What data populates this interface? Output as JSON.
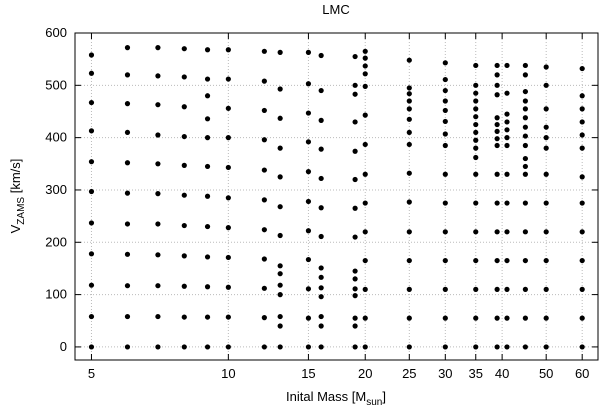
{
  "chart_data": {
    "type": "scatter",
    "title": "LMC",
    "xlabel": [
      "Inital Mass [M",
      "sun",
      "]"
    ],
    "ylabel": [
      "V",
      "ZAMS",
      " [km/s]"
    ],
    "log_x": true,
    "grid": true,
    "color": "#000000",
    "xlim": [
      4.6,
      65
    ],
    "ylim": [
      -25,
      600
    ],
    "xticks": [
      5,
      10,
      15,
      20,
      25,
      30,
      35,
      40,
      50,
      60
    ],
    "yticks": [
      0,
      100,
      200,
      300,
      400,
      500,
      600
    ],
    "groups": [
      {
        "x": 5,
        "y": [
          0,
          58,
          118,
          178,
          237,
          297,
          354,
          413,
          467,
          523,
          558
        ]
      },
      {
        "x": 6,
        "y": [
          0,
          58,
          117,
          177,
          235,
          294,
          352,
          410,
          465,
          520,
          572
        ]
      },
      {
        "x": 7,
        "y": [
          0,
          58,
          117,
          176,
          235,
          293,
          350,
          405,
          463,
          518,
          572
        ]
      },
      {
        "x": 8,
        "y": [
          0,
          57,
          116,
          174,
          232,
          290,
          347,
          402,
          459,
          516,
          570
        ]
      },
      {
        "x": 9,
        "y": [
          0,
          57,
          115,
          172,
          230,
          288,
          345,
          400,
          436,
          480,
          512,
          568
        ]
      },
      {
        "x": 10,
        "y": [
          0,
          57,
          114,
          171,
          228,
          285,
          343,
          400,
          456,
          512,
          568
        ]
      },
      {
        "x": 12,
        "y": [
          0,
          56,
          112,
          168,
          224,
          281,
          338,
          396,
          452,
          508,
          565
        ]
      },
      {
        "x": 13,
        "y": [
          0,
          40,
          58,
          100,
          118,
          140,
          155,
          213,
          268,
          325,
          380,
          437,
          493,
          563
        ]
      },
      {
        "x": 15,
        "y": [
          0,
          55,
          111,
          167,
          222,
          278,
          335,
          392,
          447,
          503,
          563
        ]
      },
      {
        "x": 16,
        "y": [
          0,
          40,
          58,
          96,
          113,
          133,
          151,
          211,
          266,
          322,
          378,
          433,
          490,
          557
        ]
      },
      {
        "x": 19,
        "y": [
          0,
          40,
          55,
          98,
          111,
          130,
          145,
          210,
          265,
          320,
          374,
          430,
          483,
          500,
          555
        ]
      },
      {
        "x": 20,
        "y": [
          0,
          55,
          110,
          165,
          220,
          275,
          330,
          387,
          443,
          498,
          522,
          537,
          552,
          565
        ]
      },
      {
        "x": 25,
        "y": [
          0,
          55,
          110,
          165,
          220,
          277,
          332,
          387,
          410,
          435,
          455,
          470,
          484,
          495,
          548
        ]
      },
      {
        "x": 30,
        "y": [
          0,
          55,
          110,
          165,
          220,
          275,
          330,
          385,
          407,
          431,
          452,
          470,
          490,
          511,
          543
        ]
      },
      {
        "x": 35,
        "y": [
          0,
          55,
          110,
          165,
          220,
          275,
          330,
          362,
          380,
          395,
          410,
          425,
          440,
          455,
          470,
          485,
          500,
          538
        ]
      },
      {
        "x": 39,
        "y": [
          0,
          55,
          110,
          165,
          220,
          275,
          330,
          385,
          398,
          412,
          425,
          438,
          482,
          500,
          520,
          538
        ]
      },
      {
        "x": 41,
        "y": [
          0,
          55,
          110,
          165,
          220,
          275,
          330,
          385,
          400,
          415,
          430,
          445,
          485,
          538
        ]
      },
      {
        "x": 45,
        "y": [
          0,
          55,
          110,
          165,
          220,
          275,
          330,
          345,
          360,
          385,
          403,
          420,
          438,
          455,
          470,
          488,
          520,
          538
        ]
      },
      {
        "x": 50,
        "y": [
          0,
          55,
          110,
          165,
          220,
          275,
          330,
          380,
          400,
          420,
          455,
          500,
          535
        ]
      },
      {
        "x": 60,
        "y": [
          0,
          55,
          110,
          165,
          220,
          275,
          325,
          380,
          405,
          430,
          455,
          480,
          532
        ]
      }
    ]
  }
}
